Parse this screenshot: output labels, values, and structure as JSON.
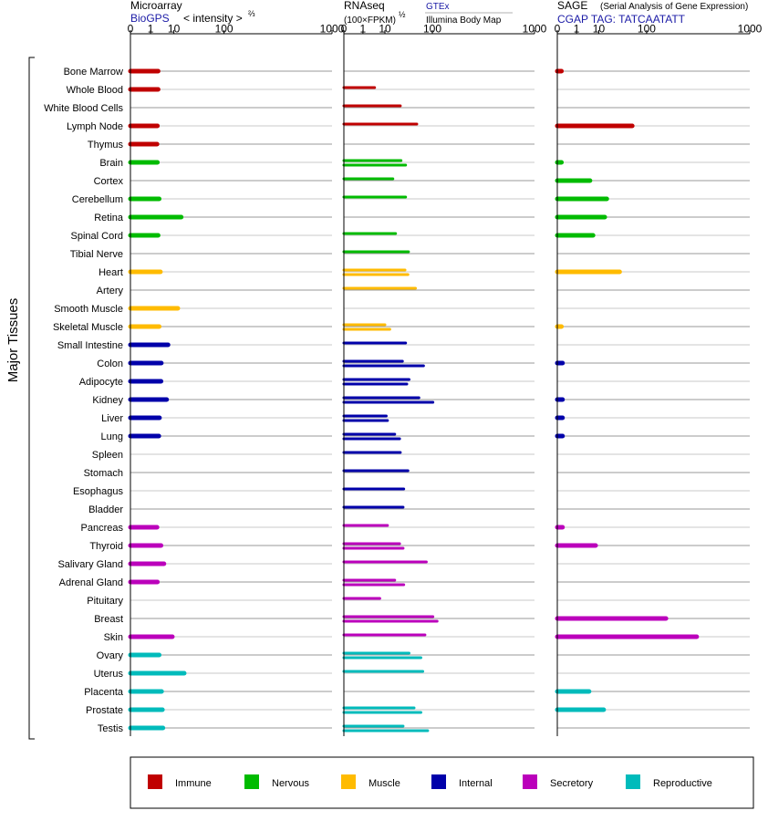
{
  "ui": {
    "y_axis_title": "Major Tissues"
  },
  "chart_data": {
    "type": "bar",
    "orientation": "horizontal",
    "scale": "cube-root",
    "axis_ticks": [
      "0",
      "1",
      "10",
      "100",
      "1000"
    ],
    "xlim": [
      0,
      1000
    ],
    "tissues": [
      "Bone Marrow",
      "Whole Blood",
      "White Blood Cells",
      "Lymph Node",
      "Thymus",
      "Brain",
      "Cortex",
      "Cerebellum",
      "Retina",
      "Spinal Cord",
      "Tibial Nerve",
      "Heart",
      "Artery",
      "Smooth Muscle",
      "Skeletal Muscle",
      "Small Intestine",
      "Colon",
      "Adipocyte",
      "Kidney",
      "Liver",
      "Lung",
      "Spleen",
      "Stomach",
      "Esophagus",
      "Bladder",
      "Pancreas",
      "Thyroid",
      "Salivary Gland",
      "Adrenal Gland",
      "Pituitary",
      "Breast",
      "Skin",
      "Ovary",
      "Uterus",
      "Placenta",
      "Prostate",
      "Testis"
    ],
    "tissue_groups": [
      "Immune",
      "Immune",
      "Immune",
      "Immune",
      "Immune",
      "Nervous",
      "Nervous",
      "Nervous",
      "Nervous",
      "Nervous",
      "Nervous",
      "Muscle",
      "Muscle",
      "Muscle",
      "Muscle",
      "Internal",
      "Internal",
      "Internal",
      "Internal",
      "Internal",
      "Internal",
      "Internal",
      "Internal",
      "Internal",
      "Internal",
      "Secretory",
      "Secretory",
      "Secretory",
      "Secretory",
      "Secretory",
      "Secretory",
      "Secretory",
      "Reproductive",
      "Reproductive",
      "Reproductive",
      "Reproductive",
      "Reproductive"
    ],
    "legend": [
      {
        "name": "Immune",
        "color": "#c00000"
      },
      {
        "name": "Nervous",
        "color": "#00bb00"
      },
      {
        "name": "Muscle",
        "color": "#ffbb00"
      },
      {
        "name": "Internal",
        "color": "#0000aa"
      },
      {
        "name": "Secretory",
        "color": "#bb00bb"
      },
      {
        "name": "Reproductive",
        "color": "#00bbbb"
      }
    ],
    "panels": [
      {
        "key": "microarray",
        "title": "Microarray",
        "subtitle": "BioGPS",
        "note": "< intensity >",
        "note_exp": "⅔",
        "values": [
          [
            2.6
          ],
          [
            2.6
          ],
          [],
          [
            2.4
          ],
          [
            2.3
          ],
          [
            2.4
          ],
          [],
          [
            2.9
          ],
          [
            16
          ],
          [
            2.6
          ],
          [],
          [
            3.3
          ],
          [],
          [
            13
          ],
          [
            2.9
          ],
          [
            6.5
          ],
          [
            3.6
          ],
          [
            3.5
          ],
          [
            5.8
          ],
          [
            3
          ],
          [
            2.8
          ],
          [],
          [],
          [],
          [],
          [
            2.3
          ],
          [
            3.5
          ],
          [
            4.6
          ],
          [
            2.4
          ],
          [],
          [],
          [
            9
          ],
          [
            2.9
          ],
          [
            19
          ],
          [
            3.7
          ],
          [
            4
          ],
          [
            4.2
          ]
        ]
      },
      {
        "key": "rnaseq",
        "title": "RNAseq",
        "subtitle": "(100×FPKM)",
        "note_exp": "½",
        "source_primary": "GTEx",
        "source_secondary": "Illumina Body Map",
        "values": [
          [],
          [
            4.2
          ],
          [
            26
          ],
          [
            56
          ],
          [],
          [
            27,
            34
          ],
          [
            17
          ],
          [
            34
          ],
          [],
          [
            20
          ],
          [
            39
          ],
          [
            33,
            38
          ],
          [
            53
          ],
          [],
          [
            10,
            14
          ],
          [
            34
          ],
          [
            29,
            73
          ],
          [
            40,
            36
          ],
          [
            61,
            102
          ],
          [
            11,
            12
          ],
          [
            19,
            25
          ],
          [
            26
          ],
          [
            38
          ],
          [
            31
          ],
          [
            30
          ],
          [
            12
          ],
          [
            25,
            30
          ],
          [
            81
          ],
          [
            19,
            31
          ],
          [
            6.7
          ],
          [
            102,
            117
          ],
          [
            77
          ],
          [
            40,
            66
          ],
          [
            71
          ],
          [],
          [
            50,
            66
          ],
          [
            30,
            85
          ]
        ]
      },
      {
        "key": "sage",
        "title": "SAGE",
        "subtitle": "CGAP TAG: TATCAATATT",
        "note": "(Serial Analysis of Gene Expression)",
        "values": [
          [
            0.01
          ],
          [],
          [],
          [
            59
          ],
          [],
          [
            0.01
          ],
          [
            4.9
          ],
          [
            17
          ],
          [
            15
          ],
          [
            6.4
          ],
          [],
          [
            34
          ],
          [],
          [],
          [
            0.01
          ],
          [],
          [
            0.02
          ],
          [],
          [
            0.02
          ],
          [
            0.02
          ],
          [
            0.02
          ],
          [],
          [],
          [],
          [],
          [
            0.02
          ],
          [
            7.9
          ],
          [],
          [],
          [],
          [
            180
          ],
          [
            380
          ],
          [],
          [],
          [
            4.5
          ],
          [
            14
          ],
          []
        ]
      }
    ]
  }
}
